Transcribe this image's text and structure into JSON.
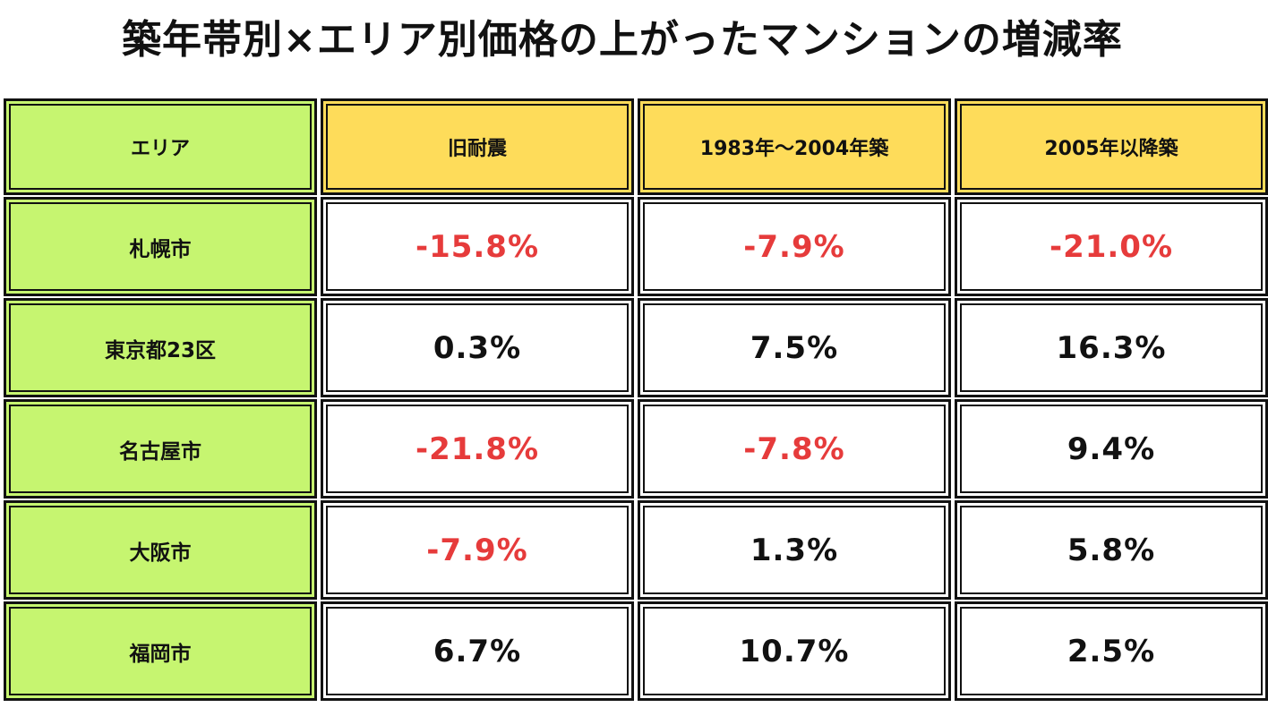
{
  "title": "築年帯別×エリア別価格の上がったマンションの増減率",
  "colors": {
    "area_bg": "#c6f570",
    "year_header_bg": "#fedc5a",
    "negative_text": "#e63b3b",
    "positive_text": "#111111",
    "border": "#111111"
  },
  "chart_data": {
    "type": "table",
    "title": "築年帯別×エリア別価格の上がったマンションの増減率",
    "columns": [
      "エリア",
      "旧耐震",
      "1983年～2004年築",
      "2005年以降築"
    ],
    "rows": [
      {
        "area": "札幌市",
        "values": [
          "-15.8%",
          "-7.9%",
          "-21.0%"
        ],
        "numbers": [
          -15.8,
          -7.9,
          -21.0
        ]
      },
      {
        "area": "東京都23区",
        "values": [
          "0.3%",
          "7.5%",
          "16.3%"
        ],
        "numbers": [
          0.3,
          7.5,
          16.3
        ]
      },
      {
        "area": "名古屋市",
        "values": [
          "-21.8%",
          "-7.8%",
          "9.4%"
        ],
        "numbers": [
          -21.8,
          -7.8,
          9.4
        ]
      },
      {
        "area": "大阪市",
        "values": [
          "-7.9%",
          "1.3%",
          "5.8%"
        ],
        "numbers": [
          -7.9,
          1.3,
          5.8
        ]
      },
      {
        "area": "福岡市",
        "values": [
          "6.7%",
          "10.7%",
          "2.5%"
        ],
        "numbers": [
          6.7,
          10.7,
          2.5
        ]
      }
    ]
  }
}
